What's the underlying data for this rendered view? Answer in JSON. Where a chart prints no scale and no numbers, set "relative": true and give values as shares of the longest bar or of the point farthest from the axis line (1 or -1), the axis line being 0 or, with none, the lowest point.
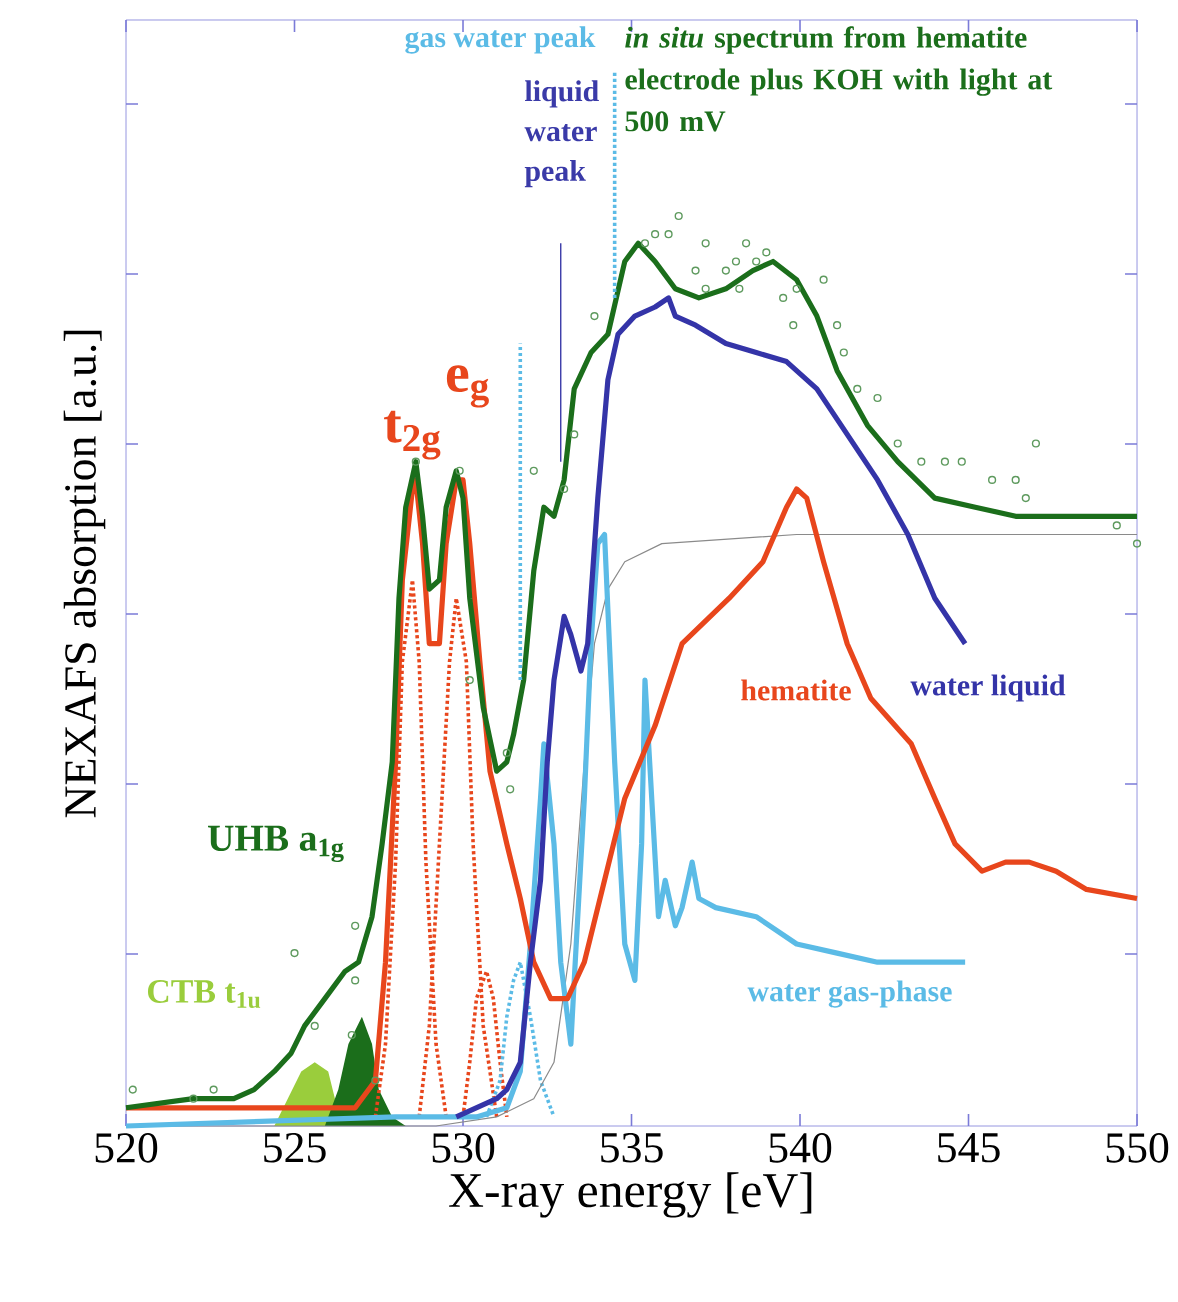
{
  "chart_data": {
    "type": "line",
    "xlabel": "X-ray energy [eV]",
    "ylabel": "NEXAFS absorption [a.u.]",
    "xlim": [
      520,
      550
    ],
    "xticks": [
      520,
      525,
      530,
      535,
      540,
      545,
      550
    ],
    "relative": true,
    "series": [
      {
        "type": "area",
        "color": "#9acd3c",
        "x": [
          524.4,
          524.8,
          525.2,
          525.6,
          526.0,
          526.2,
          526.5
        ],
        "values": [
          0.0,
          0.03,
          0.06,
          0.07,
          0.06,
          0.03,
          0.0
        ]
      },
      {
        "type": "area",
        "color": "#1b6e1b",
        "x": [
          525.9,
          526.3,
          526.6,
          527.0,
          527.3,
          527.5,
          527.9,
          528.3
        ],
        "values": [
          0.0,
          0.04,
          0.09,
          0.12,
          0.09,
          0.04,
          0.01,
          0.0
        ]
      },
      {
        "color": "#e8461c",
        "line_style": "dotted",
        "x": [
          527.4,
          527.7,
          528.0,
          528.2,
          528.5,
          528.7,
          528.9,
          529.2,
          529.5
        ],
        "values": [
          0.01,
          0.09,
          0.29,
          0.51,
          0.6,
          0.51,
          0.29,
          0.09,
          0.01
        ]
      },
      {
        "color": "#e8461c",
        "line_style": "dotted",
        "x": [
          528.7,
          529.0,
          529.3,
          529.6,
          529.8,
          530.1,
          530.3,
          530.6,
          531.0
        ],
        "values": [
          0.01,
          0.11,
          0.31,
          0.51,
          0.58,
          0.51,
          0.31,
          0.11,
          0.01
        ]
      },
      {
        "color": "#e8461c",
        "line_style": "dotted",
        "x": [
          530.0,
          530.2,
          530.4,
          530.7,
          530.9,
          531.1,
          531.3
        ],
        "values": [
          0.01,
          0.07,
          0.14,
          0.17,
          0.14,
          0.07,
          0.01
        ]
      },
      {
        "color": "#5bbbe6",
        "line_style": "dotted",
        "x": [
          530.7,
          531.1,
          531.3,
          531.5,
          531.7,
          531.8,
          532.0,
          532.3,
          532.7
        ],
        "values": [
          0.01,
          0.05,
          0.12,
          0.16,
          0.18,
          0.16,
          0.12,
          0.05,
          0.01
        ]
      },
      {
        "color": "#8a8a8a",
        "x": [
          520.0,
          529.2,
          531.0,
          532.1,
          532.7,
          533.2,
          533.6,
          533.9,
          534.3,
          534.8,
          535.9,
          539.9,
          550.0
        ],
        "values": [
          0.0,
          0.0,
          0.01,
          0.03,
          0.07,
          0.2,
          0.4,
          0.53,
          0.59,
          0.62,
          0.64,
          0.65,
          0.65
        ]
      },
      {
        "name": "water gas-phase",
        "color": "#5bbbe6",
        "x": [
          520.0,
          528.0,
          530.4,
          531.3,
          531.7,
          532.0,
          532.3,
          532.4,
          532.7,
          532.9,
          533.2,
          533.3,
          533.6,
          533.8,
          534.0,
          534.2,
          534.5,
          534.8,
          535.1,
          535.3,
          535.4,
          535.6,
          535.8,
          536.0,
          536.3,
          536.5,
          536.8,
          537.0,
          537.5,
          538.7,
          539.9,
          541.1,
          542.3,
          543.2,
          544.9
        ],
        "values": [
          0.0,
          0.01,
          0.01,
          0.02,
          0.06,
          0.2,
          0.36,
          0.42,
          0.31,
          0.18,
          0.09,
          0.16,
          0.36,
          0.53,
          0.64,
          0.65,
          0.4,
          0.2,
          0.16,
          0.31,
          0.49,
          0.36,
          0.23,
          0.27,
          0.22,
          0.24,
          0.29,
          0.25,
          0.24,
          0.23,
          0.2,
          0.19,
          0.18,
          0.18,
          0.18
        ]
      },
      {
        "name": "hematite",
        "color": "#e8461c",
        "x": [
          520.0,
          525.0,
          526.8,
          527.4,
          527.7,
          528.0,
          528.2,
          528.5,
          528.6,
          528.8,
          529.0,
          529.3,
          529.5,
          529.8,
          530.0,
          530.2,
          530.5,
          530.8,
          531.3,
          531.7,
          532.1,
          532.6,
          533.1,
          533.6,
          534.2,
          534.8,
          535.7,
          536.5,
          537.9,
          538.9,
          539.6,
          539.9,
          540.2,
          540.7,
          541.4,
          542.1,
          543.3,
          544.0,
          544.6,
          545.4,
          546.1,
          546.8,
          547.6,
          548.5,
          550.0
        ],
        "values": [
          0.02,
          0.02,
          0.02,
          0.05,
          0.18,
          0.4,
          0.6,
          0.7,
          0.71,
          0.64,
          0.53,
          0.53,
          0.64,
          0.71,
          0.71,
          0.64,
          0.51,
          0.39,
          0.31,
          0.25,
          0.18,
          0.14,
          0.14,
          0.18,
          0.27,
          0.36,
          0.44,
          0.53,
          0.58,
          0.62,
          0.68,
          0.7,
          0.69,
          0.62,
          0.53,
          0.47,
          0.42,
          0.36,
          0.31,
          0.28,
          0.29,
          0.29,
          0.28,
          0.26,
          0.25
        ]
      },
      {
        "name": "water liquid",
        "color": "#3434a8",
        "x": [
          529.8,
          530.4,
          531.0,
          531.3,
          531.7,
          532.0,
          532.3,
          532.5,
          532.7,
          533.0,
          533.2,
          533.5,
          533.7,
          534.0,
          534.3,
          534.6,
          535.1,
          535.7,
          536.1,
          536.3,
          536.9,
          537.8,
          538.7,
          539.6,
          540.5,
          541.4,
          542.3,
          543.2,
          544.0,
          544.9
        ],
        "values": [
          0.01,
          0.02,
          0.03,
          0.04,
          0.07,
          0.18,
          0.27,
          0.4,
          0.49,
          0.56,
          0.54,
          0.5,
          0.53,
          0.69,
          0.82,
          0.87,
          0.89,
          0.9,
          0.91,
          0.89,
          0.88,
          0.86,
          0.85,
          0.84,
          0.81,
          0.76,
          0.71,
          0.65,
          0.58,
          0.53
        ]
      },
      {
        "type": "scatter",
        "color": "#5e9a5e",
        "marker": "circle",
        "x": [
          520.2,
          522.0,
          522.6,
          525.0,
          525.6,
          526.7,
          526.8,
          526.8,
          527.4,
          528.6,
          529.9,
          530.2,
          531.3,
          531.4,
          532.1,
          533.0,
          533.3,
          533.9,
          535.4,
          535.7,
          536.1,
          536.4,
          536.9,
          537.2,
          537.2,
          537.8,
          538.1,
          538.2,
          538.4,
          538.7,
          539.0,
          539.5,
          539.8,
          539.9,
          540.7,
          541.1,
          541.3,
          541.7,
          542.3,
          542.9,
          543.6,
          544.3,
          544.8,
          545.7,
          546.4,
          546.7,
          547.0,
          549.4,
          550.0
        ],
        "values": [
          0.04,
          0.03,
          0.04,
          0.19,
          0.11,
          0.1,
          0.16,
          0.22,
          0.05,
          0.73,
          0.72,
          0.49,
          0.41,
          0.37,
          0.72,
          0.7,
          0.76,
          0.89,
          0.97,
          0.98,
          0.98,
          1.0,
          0.94,
          0.97,
          0.92,
          0.94,
          0.95,
          0.92,
          0.97,
          0.95,
          0.96,
          0.91,
          0.88,
          0.92,
          0.93,
          0.88,
          0.85,
          0.81,
          0.8,
          0.75,
          0.73,
          0.73,
          0.73,
          0.71,
          0.71,
          0.69,
          0.75,
          0.66,
          0.64
        ]
      },
      {
        "name": "*in situ* spectrum from hematite electrode plus KOH with light at 500 mV",
        "color": "#1b6e1b",
        "x": [
          520.0,
          522.0,
          523.2,
          523.8,
          524.4,
          524.9,
          525.3,
          525.9,
          526.5,
          526.9,
          527.3,
          527.6,
          527.9,
          528.1,
          528.3,
          528.6,
          528.8,
          529.0,
          529.3,
          529.5,
          529.8,
          530.0,
          530.2,
          530.6,
          531.0,
          531.3,
          531.5,
          531.8,
          532.1,
          532.4,
          532.7,
          533.0,
          533.3,
          533.8,
          534.3,
          534.8,
          535.2,
          535.7,
          536.3,
          537.0,
          537.8,
          538.6,
          539.2,
          539.9,
          540.5,
          541.1,
          542.0,
          542.9,
          544.0,
          545.2,
          546.4,
          547.6,
          550.0
        ],
        "values": [
          0.02,
          0.03,
          0.03,
          0.04,
          0.06,
          0.08,
          0.11,
          0.14,
          0.17,
          0.18,
          0.23,
          0.31,
          0.4,
          0.58,
          0.68,
          0.73,
          0.67,
          0.59,
          0.6,
          0.68,
          0.72,
          0.69,
          0.58,
          0.46,
          0.39,
          0.4,
          0.43,
          0.49,
          0.61,
          0.68,
          0.67,
          0.71,
          0.81,
          0.85,
          0.87,
          0.95,
          0.97,
          0.95,
          0.92,
          0.91,
          0.92,
          0.94,
          0.95,
          0.93,
          0.89,
          0.83,
          0.77,
          0.73,
          0.69,
          0.68,
          0.67,
          0.67,
          0.67
        ]
      }
    ],
    "annotations": [
      {
        "text": "t$_{2g}$",
        "x": 528.5,
        "y": 0.71
      },
      {
        "text": "e$_{g}$",
        "x": 529.9,
        "y": 0.71
      },
      "UHB a$_{1g}$",
      "CTB t$_{1u}$"
    ],
    "ref_lines": [
      {
        "axis": "x",
        "value": 531.7,
        "label": "gas water peak",
        "color": "#5bbbe6",
        "line_style": "dotted"
      },
      {
        "axis": "x",
        "value": 534.5,
        "color": "#5bbbe6",
        "line_style": "dotted"
      },
      {
        "axis": "x",
        "value": 532.9,
        "label": "liquid water peak",
        "color": "#3a3aa8",
        "line_style": "solid"
      }
    ]
  }
}
